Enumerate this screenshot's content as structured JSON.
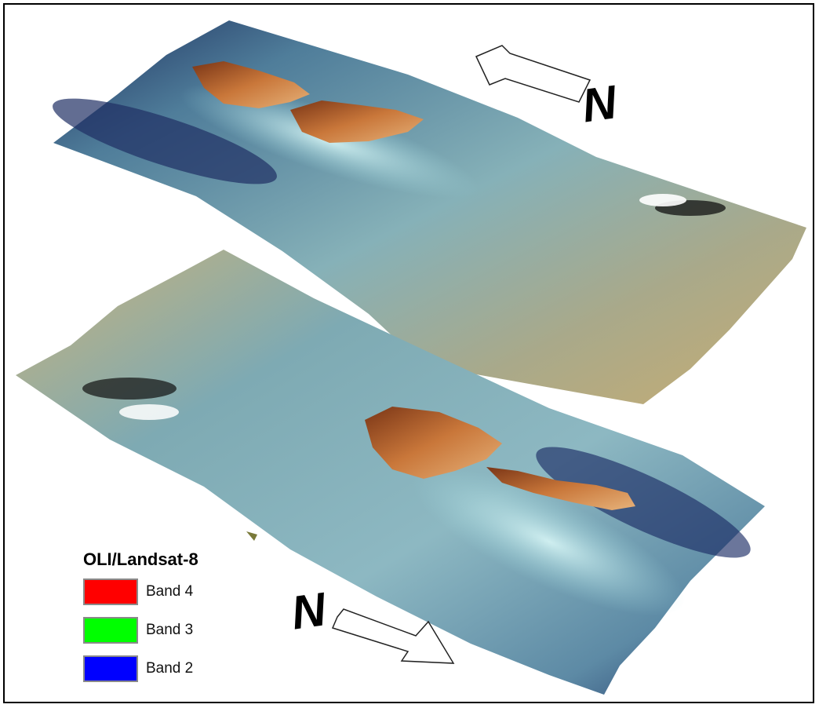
{
  "legend": {
    "title": "OLI/Landsat-8",
    "items": [
      {
        "label": "Band 4",
        "color": "#ff0000"
      },
      {
        "label": "Band 3",
        "color": "#00ff00"
      },
      {
        "label": "Band 2",
        "color": "#0000ff"
      }
    ]
  },
  "north_arrows": {
    "upper_label": "N",
    "lower_label": "N"
  },
  "colors": {
    "land": "#c26a2c",
    "shallow_water": "#7fb3c0",
    "deep_water": "#2a3f6e",
    "sand": "#c9b27a"
  }
}
